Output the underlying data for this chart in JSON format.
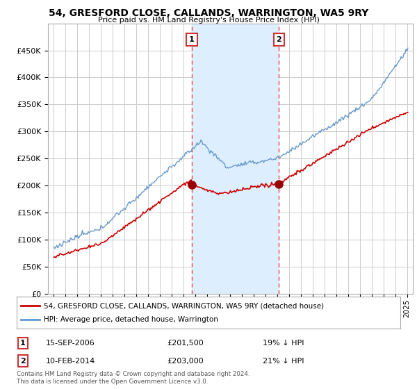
{
  "title": "54, GRESFORD CLOSE, CALLANDS, WARRINGTON, WA5 9RY",
  "subtitle": "Price paid vs. HM Land Registry's House Price Index (HPI)",
  "footer1": "Contains HM Land Registry data © Crown copyright and database right 2024.",
  "footer2": "This data is licensed under the Open Government Licence v3.0.",
  "legend1": "54, GRESFORD CLOSE, CALLANDS, WARRINGTON, WA5 9RY (detached house)",
  "legend2": "HPI: Average price, detached house, Warrington",
  "annotation1_label": "1",
  "annotation1_date": "15-SEP-2006",
  "annotation1_price": "£201,500",
  "annotation1_hpi": "19% ↓ HPI",
  "annotation2_label": "2",
  "annotation2_date": "10-FEB-2014",
  "annotation2_price": "£203,000",
  "annotation2_hpi": "21% ↓ HPI",
  "sale1_x": 2006.71,
  "sale1_y": 201500,
  "sale2_x": 2014.12,
  "sale2_y": 203000,
  "vline1_x": 2006.71,
  "vline2_x": 2014.12,
  "highlight_xmin": 2006.71,
  "highlight_xmax": 2014.12,
  "ylim": [
    0,
    500000
  ],
  "xlim_min": 1994.5,
  "xlim_max": 2025.5,
  "background_color": "#ffffff",
  "plot_bg_color": "#ffffff",
  "grid_color": "#cccccc",
  "highlight_color": "#ddeeff",
  "vline_color": "#ee4444",
  "red_line_color": "#cc0000",
  "blue_line_color": "#6699cc",
  "sale_dot_color": "#990000",
  "annotation_box_color": "#ffffff",
  "annotation_box_border": "#cc3333"
}
